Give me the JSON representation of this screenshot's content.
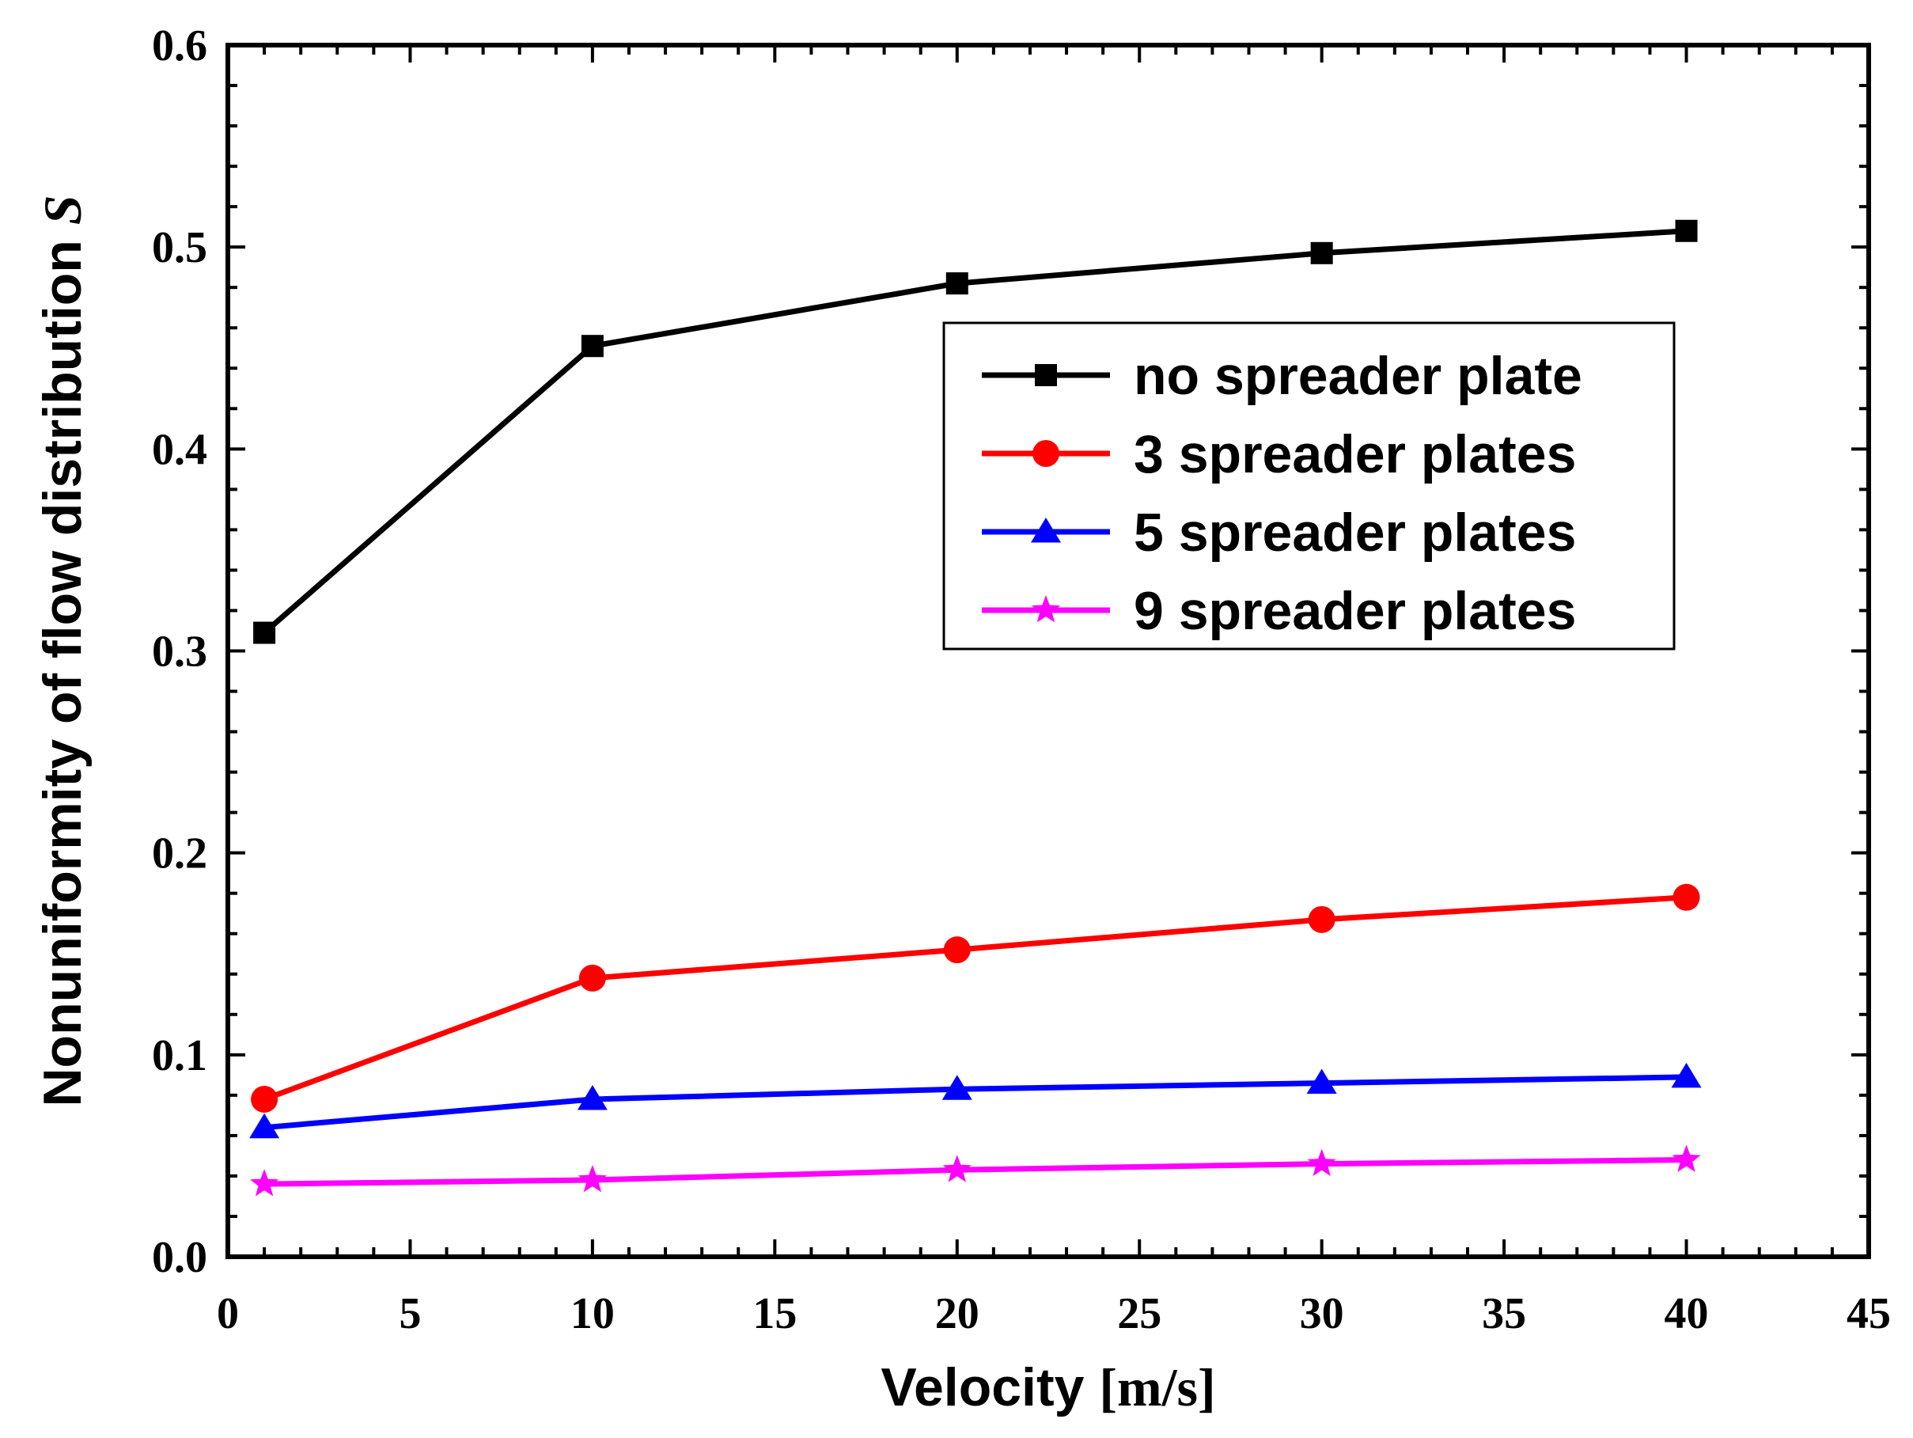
{
  "chart_data": {
    "type": "line",
    "title": "",
    "xlabel": "Velocity [m/s]",
    "xlabel_unit_part": "[m/s]",
    "xlabel_main_part": "Velocity",
    "ylabel": "Nonuniformity of flow distribution S",
    "ylabel_main_part": "Nonuniformity of flow distribution",
    "ylabel_symbol": "S",
    "xlim": [
      0,
      45
    ],
    "ylim": [
      0.0,
      0.6
    ],
    "xticks": [
      0,
      5,
      10,
      15,
      20,
      25,
      30,
      35,
      40,
      45
    ],
    "xtick_labels": [
      "0",
      "5",
      "10",
      "15",
      "20",
      "25",
      "30",
      "35",
      "40",
      "45"
    ],
    "yticks": [
      0.0,
      0.1,
      0.2,
      0.3,
      0.4,
      0.5,
      0.6
    ],
    "ytick_labels": [
      "0.0",
      "0.1",
      "0.2",
      "0.3",
      "0.4",
      "0.5",
      "0.6"
    ],
    "grid": false,
    "legend_position": "upper-right-inset",
    "x": [
      1,
      10,
      20,
      30,
      40
    ],
    "series": [
      {
        "name": "no spreader plate",
        "color": "#000000",
        "marker": "square",
        "values": [
          0.309,
          0.451,
          0.482,
          0.497,
          0.508
        ]
      },
      {
        "name": "3 spreader plates",
        "color": "#ff0000",
        "marker": "circle",
        "values": [
          0.078,
          0.138,
          0.152,
          0.167,
          0.178
        ]
      },
      {
        "name": "5 spreader plates",
        "color": "#0000ff",
        "marker": "triangle",
        "values": [
          0.064,
          0.078,
          0.083,
          0.086,
          0.089
        ]
      },
      {
        "name": "9 spreader plates",
        "color": "#ff00ff",
        "marker": "star",
        "values": [
          0.036,
          0.038,
          0.043,
          0.046,
          0.048
        ]
      }
    ]
  }
}
